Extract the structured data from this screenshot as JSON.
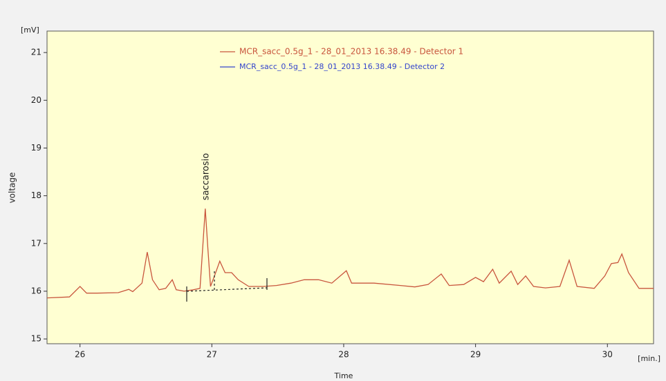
{
  "chart_data": {
    "type": "line",
    "y_unit": "[mV]",
    "x_unit": "[min.]",
    "ylabel": "voltage",
    "xlabel": "Time",
    "annotation": "saccarosio",
    "x": [
      25.75,
      25.92,
      26.0,
      26.05,
      26.13,
      26.29,
      26.37,
      26.4,
      26.47,
      26.51,
      26.55,
      26.6,
      26.65,
      26.7,
      26.73,
      26.79,
      26.86,
      26.91,
      26.93,
      26.95,
      26.97,
      26.99,
      27.02,
      27.06,
      27.1,
      27.15,
      27.2,
      27.28,
      27.39,
      27.49,
      27.6,
      27.7,
      27.81,
      27.91,
      28.02,
      28.06,
      28.23,
      28.43,
      28.54,
      28.64,
      28.74,
      28.8,
      28.91,
      29.0,
      29.06,
      29.13,
      29.18,
      29.27,
      29.32,
      29.38,
      29.44,
      29.53,
      29.64,
      29.71,
      29.77,
      29.9,
      29.98,
      30.03,
      30.08,
      30.11,
      30.16,
      30.24,
      30.35
    ],
    "series": [
      {
        "name": "MCR_sacc_0.5g_1 - 28_01_2013 16.38.49  -  Detector 1",
        "color": "#c8553d",
        "values": [
          15.86,
          15.88,
          16.1,
          15.96,
          15.96,
          15.97,
          16.04,
          15.99,
          16.17,
          16.82,
          16.24,
          16.03,
          16.06,
          16.24,
          16.03,
          16.0,
          16.03,
          16.06,
          16.89,
          17.73,
          16.89,
          16.1,
          16.32,
          16.63,
          16.39,
          16.39,
          16.24,
          16.1,
          16.1,
          16.12,
          16.17,
          16.24,
          16.24,
          16.17,
          16.43,
          16.17,
          16.17,
          16.12,
          16.09,
          16.14,
          16.36,
          16.12,
          16.14,
          16.29,
          16.2,
          16.46,
          16.17,
          16.42,
          16.14,
          16.32,
          16.1,
          16.07,
          16.1,
          16.65,
          16.1,
          16.06,
          16.32,
          16.58,
          16.6,
          16.78,
          16.39,
          16.06,
          16.06
        ]
      },
      {
        "name": "MCR_sacc_0.5g_1 - 28_01_2013 16.38.49  -  Detector 2",
        "color": "#3344cc",
        "values": [
          null,
          null,
          null,
          null,
          null,
          null,
          null,
          null,
          null,
          null,
          null,
          null,
          null,
          null,
          null,
          null,
          null,
          null,
          null,
          null,
          null,
          null,
          null,
          null,
          null,
          null,
          null,
          null,
          null,
          null,
          null,
          null,
          null,
          null,
          null,
          null,
          null,
          null,
          null,
          null,
          null,
          null,
          null,
          null,
          null,
          null,
          null,
          null,
          null,
          null,
          null,
          null,
          null,
          null,
          null,
          null,
          null,
          null,
          null,
          null,
          null,
          null,
          null
        ]
      }
    ],
    "xlim": [
      25.75,
      30.35
    ],
    "ylim": [
      14.9,
      21.45
    ],
    "xticks": [
      26,
      27,
      28,
      29,
      30
    ],
    "yticks": [
      15,
      16,
      17,
      18,
      19,
      20,
      21
    ],
    "background": "#ffffd2"
  }
}
